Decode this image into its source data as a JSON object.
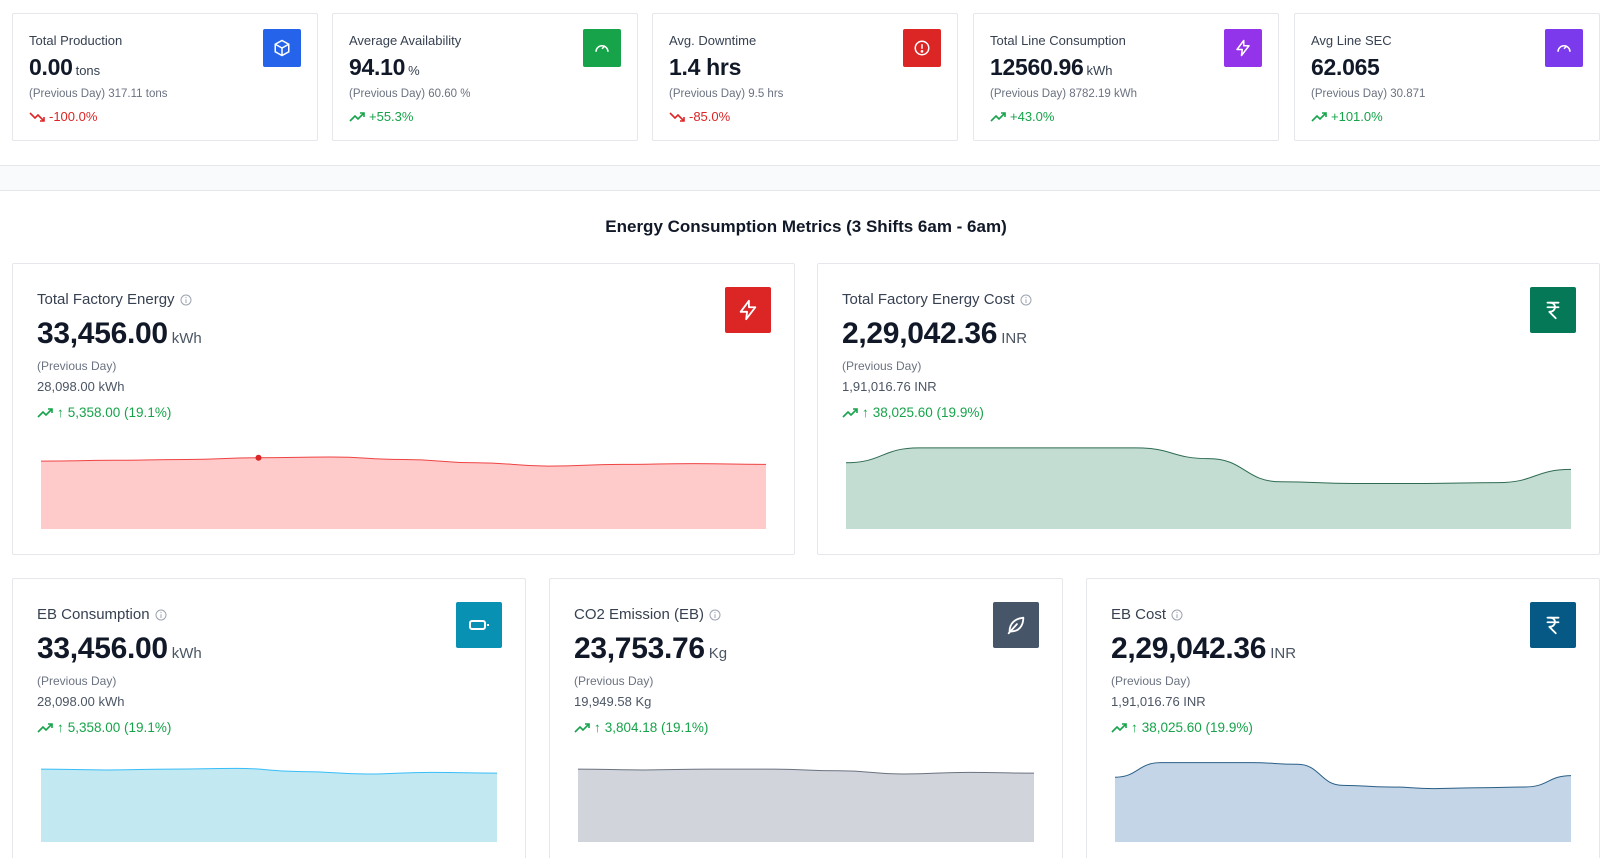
{
  "kpis": [
    {
      "title": "Total Production",
      "value": "0.00",
      "unit": "tons",
      "prev": "(Previous Day) 317.11 tons",
      "change": "-100.0%",
      "trend": "down",
      "icon": "cube-icon",
      "color": "#2563eb"
    },
    {
      "title": "Average Availability",
      "value": "94.10",
      "unit": "%",
      "prev": "(Previous Day) 60.60 %",
      "change": "+55.3%",
      "trend": "up",
      "icon": "gauge-icon",
      "color": "#16a34a"
    },
    {
      "title": "Avg. Downtime",
      "value": "1.4 hrs",
      "unit": "",
      "prev": "(Previous Day) 9.5 hrs",
      "change": "-85.0%",
      "trend": "down",
      "icon": "alert-circle-icon",
      "color": "#dc2626"
    },
    {
      "title": "Total Line Consumption",
      "value": "12560.96",
      "unit": "kWh",
      "prev": "(Previous Day) 8782.19 kWh",
      "change": "+43.0%",
      "trend": "up",
      "icon": "lightning-icon",
      "color": "#9333ea"
    },
    {
      "title": "Avg Line SEC",
      "value": "62.065",
      "unit": "",
      "prev": "(Previous Day) 30.871",
      "change": "+101.0%",
      "trend": "up",
      "icon": "gauge-icon",
      "color": "#7c3aed"
    }
  ],
  "section_title": "Energy Consumption Metrics (3 Shifts 6am - 6am)",
  "cards": [
    {
      "title": "Total Factory Energy",
      "value": "33,456.00",
      "unit": "kWh",
      "prev_label": "(Previous Day)",
      "prev_value": "28,098.00 kWh",
      "change": "5,358.00 (19.1%)",
      "icon": "lightning-icon",
      "color": "#dc2626",
      "spark_fill": "#fecaca",
      "spark_line": "#ef4444",
      "spark_values": [
        0.82,
        0.83,
        0.84,
        0.86,
        0.87,
        0.84,
        0.8,
        0.76,
        0.78,
        0.79,
        0.78
      ],
      "spark_marker": 3
    },
    {
      "title": "Total Factory Energy Cost",
      "value": "2,29,042.36",
      "unit": "INR",
      "prev_label": "(Previous Day)",
      "prev_value": "1,91,016.76 INR",
      "change": "38,025.60 (19.9%)",
      "icon": "rupee-icon",
      "color": "#047857",
      "spark_fill": "#c3ddd2",
      "spark_line": "#2f6b52",
      "spark_values": [
        0.8,
        0.98,
        0.98,
        0.98,
        0.98,
        0.85,
        0.57,
        0.55,
        0.55,
        0.56,
        0.72
      ]
    },
    {
      "title": "EB Consumption",
      "value": "33,456.00",
      "unit": "kWh",
      "prev_label": "(Previous Day)",
      "prev_value": "28,098.00 kWh",
      "change": "5,358.00 (19.1%)",
      "icon": "battery-icon",
      "color": "#0891b2",
      "spark_fill": "#c2e8f2",
      "spark_line": "#38bdf8",
      "spark_values": [
        0.9,
        0.89,
        0.9,
        0.91,
        0.87,
        0.84,
        0.86,
        0.85
      ]
    },
    {
      "title": "CO2 Emission (EB)",
      "value": "23,753.76",
      "unit": "Kg",
      "prev_label": "(Previous Day)",
      "prev_value": "19,949.58 Kg",
      "change": "3,804.18 (19.1%)",
      "icon": "leaf-icon",
      "color": "#475569",
      "spark_fill": "#d1d5db",
      "spark_line": "#6b7280",
      "spark_values": [
        0.9,
        0.89,
        0.9,
        0.9,
        0.88,
        0.84,
        0.86,
        0.85
      ]
    },
    {
      "title": "EB Cost",
      "value": "2,29,042.36",
      "unit": "INR",
      "prev_label": "(Previous Day)",
      "prev_value": "1,91,016.76 INR",
      "change": "38,025.60 (19.9%)",
      "icon": "rupee-icon",
      "color": "#075985",
      "spark_fill": "#c3d5e6",
      "spark_line": "#2b5f87",
      "spark_values": [
        0.8,
        0.98,
        0.98,
        0.98,
        0.96,
        0.7,
        0.68,
        0.66,
        0.67,
        0.68,
        0.82
      ]
    }
  ]
}
